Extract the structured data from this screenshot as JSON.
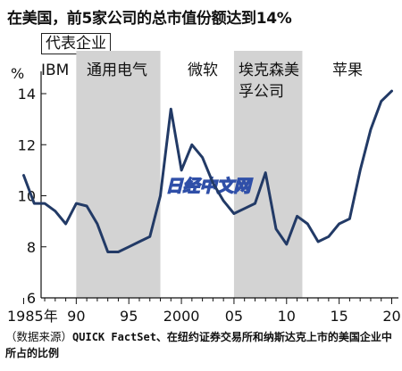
{
  "title": "在美国，前5家公司的总市值份额达到14%",
  "sector_tag": "代表企业",
  "source": {
    "label": "（数据来源）",
    "text": "QUICK FactSet、在纽约证券交易所和纳斯达克上市的美国企业中所占的比例"
  },
  "watermark": "日经中文网",
  "colors": {
    "line": "#223a66",
    "shade": "#d3d3d3",
    "watermark": "#2f4fa8"
  },
  "chart_data": {
    "type": "line",
    "ylabel": "%",
    "ylim": [
      6,
      15
    ],
    "yticks": [
      6,
      8,
      10,
      12,
      14
    ],
    "xlim": [
      1985,
      2020.5
    ],
    "xticks": [
      {
        "value": 1985,
        "label": "1985年"
      },
      {
        "value": 1990,
        "label": "90"
      },
      {
        "value": 1995,
        "label": "95"
      },
      {
        "value": 2000,
        "label": "2000"
      },
      {
        "value": 2005,
        "label": "05"
      },
      {
        "value": 2010,
        "label": "10"
      },
      {
        "value": 2015,
        "label": "15"
      },
      {
        "value": 2020,
        "label": "20"
      }
    ],
    "bands": [
      {
        "label": "IBM",
        "from": null,
        "to": null
      },
      {
        "label": "通用电气",
        "from": 1990,
        "to": 1998
      },
      {
        "label": "微软",
        "from": null,
        "to": null
      },
      {
        "label": "埃克森美孚公司",
        "from": 2005,
        "to": 2011.5
      },
      {
        "label": "苹果",
        "from": null,
        "to": null
      }
    ],
    "series": [
      {
        "x": [
          1985,
          1986,
          1987,
          1988,
          1989,
          1990,
          1991,
          1992,
          1993,
          1994,
          1995,
          1996,
          1997,
          1998,
          1999,
          2000,
          2001,
          2002,
          2003,
          2004,
          2005,
          2006,
          2007,
          2008,
          2009,
          2010,
          2011,
          2012,
          2013,
          2014,
          2015,
          2016,
          2017,
          2018,
          2019,
          2020
        ],
        "values": [
          10.8,
          9.7,
          9.7,
          9.4,
          8.9,
          9.7,
          9.6,
          8.9,
          7.8,
          7.8,
          8.0,
          8.2,
          8.4,
          10.0,
          13.4,
          11.0,
          12.0,
          11.5,
          10.5,
          9.8,
          9.3,
          9.5,
          9.7,
          10.9,
          8.7,
          8.1,
          9.2,
          8.9,
          8.2,
          8.4,
          8.9,
          9.1,
          11.0,
          12.6,
          13.7,
          14.1
        ]
      }
    ],
    "grid": false
  }
}
